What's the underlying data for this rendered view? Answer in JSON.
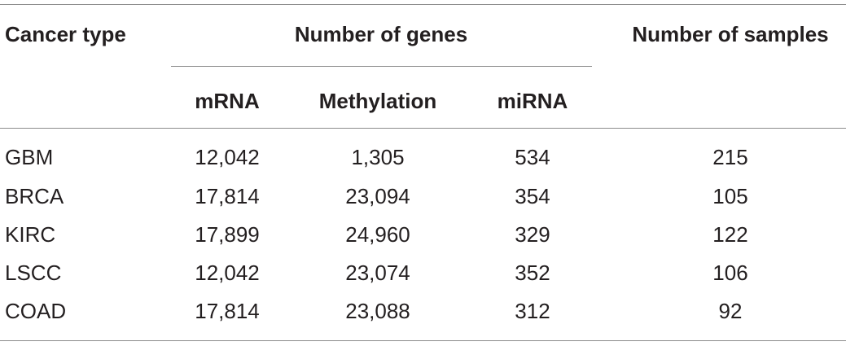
{
  "table": {
    "header": {
      "cancer_type": "Cancer type",
      "number_of_genes": "Number of genes",
      "number_of_samples": "Number of samples",
      "sub_columns": [
        "mRNA",
        "Methylation",
        "miRNA"
      ]
    },
    "rows": [
      {
        "cancer": "GBM",
        "mrna": "12,042",
        "methylation": "1,305",
        "mirna": "534",
        "samples": "215"
      },
      {
        "cancer": "BRCA",
        "mrna": "17,814",
        "methylation": "23,094",
        "mirna": "354",
        "samples": "105"
      },
      {
        "cancer": "KIRC",
        "mrna": "17,899",
        "methylation": "24,960",
        "mirna": "329",
        "samples": "122"
      },
      {
        "cancer": "LSCC",
        "mrna": "12,042",
        "methylation": "23,074",
        "mirna": "352",
        "samples": "106"
      },
      {
        "cancer": "COAD",
        "mrna": "17,814",
        "methylation": "23,088",
        "mirna": "312",
        "samples": "92"
      }
    ]
  }
}
